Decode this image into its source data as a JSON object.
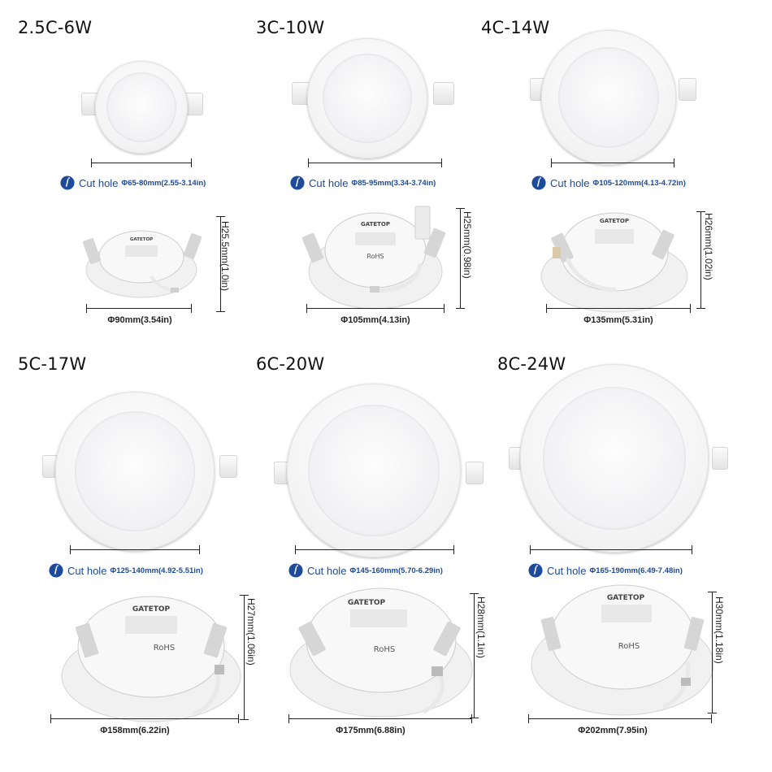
{
  "colors": {
    "accent_blue": "#1d4a9a",
    "text": "#111111",
    "panel": "#f2f2f2"
  },
  "icons": {
    "cut_hole": "info-circle-icon"
  },
  "products": [
    {
      "model": "2.5C-6W",
      "cut_label": "Cut hole",
      "cut_value": "Φ65-80mm(2.55-3.14in)",
      "diameter": "Φ90mm(3.54in)",
      "height": "H25.5mm(1.0in)",
      "brand": "GATETOP"
    },
    {
      "model": "3C-10W",
      "cut_label": "Cut hole",
      "cut_value": "Φ85-95mm(3.34-3.74in)",
      "diameter": "Φ105mm(4.13in)",
      "height": "H25mm(0.98in)",
      "brand": "GATETOP"
    },
    {
      "model": "4C-14W",
      "cut_label": "Cut hole",
      "cut_value": "Φ105-120mm(4.13-4.72in)",
      "diameter": "Φ135mm(5.31in)",
      "height": "H26mm(1.02in)",
      "brand": "GATETOP"
    },
    {
      "model": "5C-17W",
      "cut_label": "Cut hole",
      "cut_value": "Φ125-140mm(4.92-5.51in)",
      "diameter": "Φ158mm(6.22in)",
      "height": "H27mm(1.06in)",
      "brand": "GATETOP"
    },
    {
      "model": "6C-20W",
      "cut_label": "Cut hole",
      "cut_value": "Φ145-160mm(5.70-6.29in)",
      "diameter": "Φ175mm(6.88in)",
      "height": "H28mm(1.1in)",
      "brand": "GATETOP"
    },
    {
      "model": "8C-24W",
      "cut_label": "Cut hole",
      "cut_value": "Φ165-190mm(6.49-7.48in)",
      "diameter": "Φ202mm(7.95in)",
      "height": "H30mm(1.18in)",
      "brand": "GATETOP"
    }
  ],
  "rohs": "RoHS"
}
